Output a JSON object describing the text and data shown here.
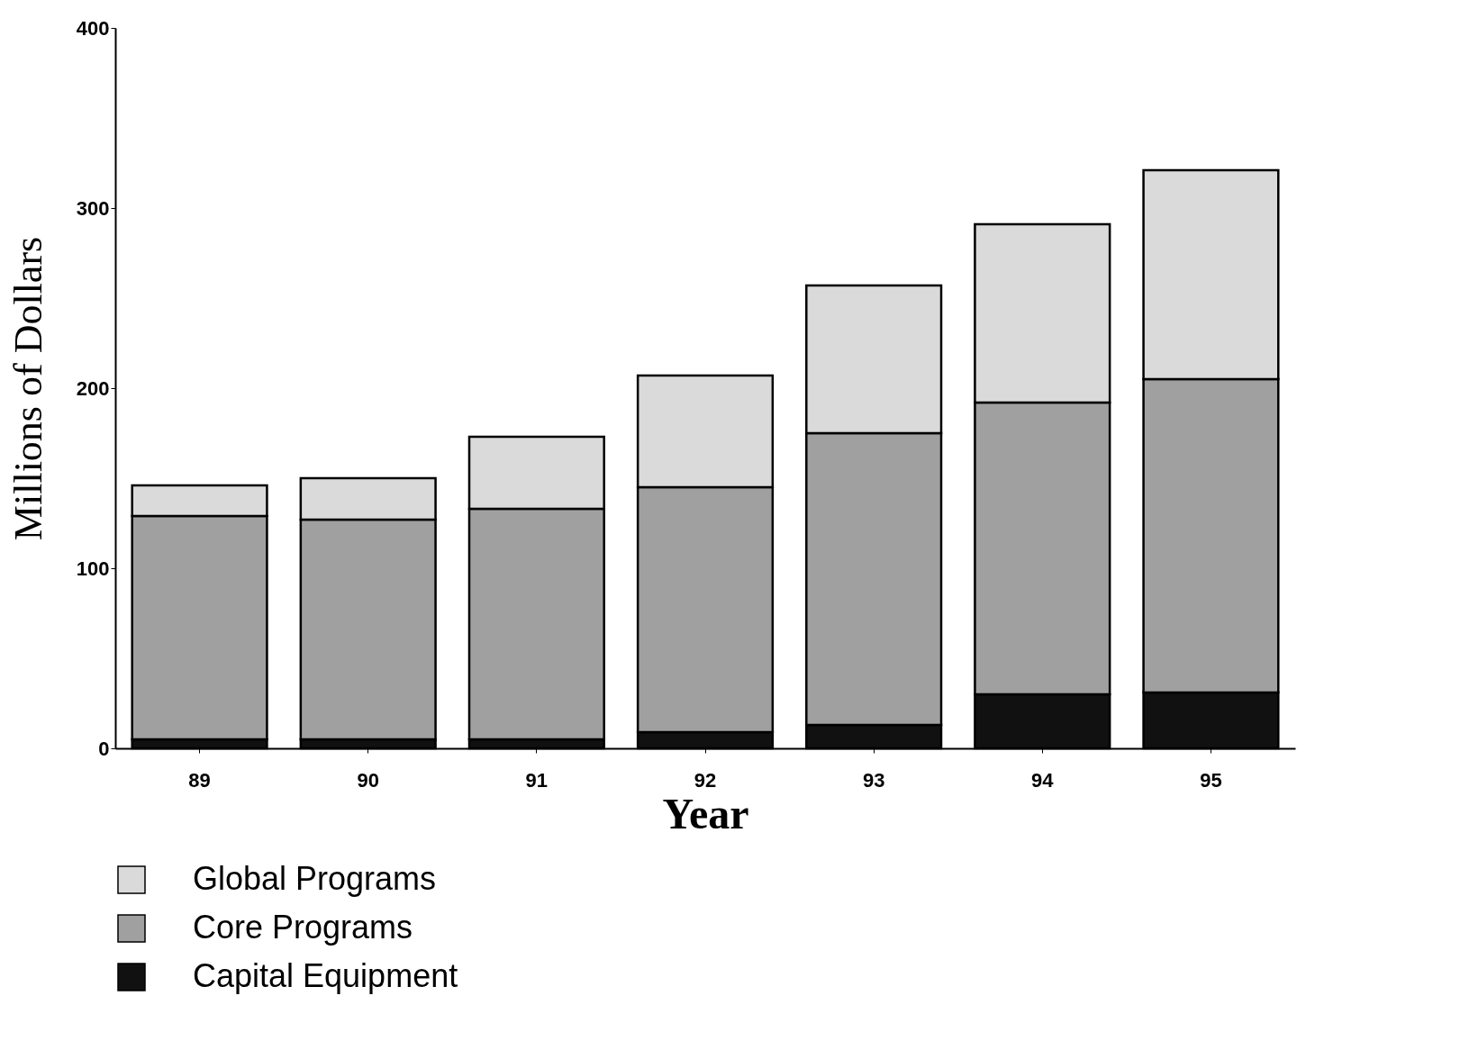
{
  "chart_data": {
    "type": "bar",
    "xlabel": "Year",
    "ylabel": "Millions of Dollars",
    "categories": [
      "89",
      "90",
      "91",
      "92",
      "93",
      "94",
      "95"
    ],
    "stacked": true,
    "ylim": [
      0,
      400
    ],
    "yticks": [
      0,
      100,
      200,
      300,
      400
    ],
    "legend": "bottom",
    "series": [
      {
        "name": "Capital Equipment",
        "color": "#111111",
        "values": [
          5,
          5,
          5,
          9,
          13,
          30,
          31
        ]
      },
      {
        "name": "Core Programs",
        "color": "#a0a0a0",
        "values": [
          124,
          122,
          128,
          136,
          162,
          162,
          174
        ]
      },
      {
        "name": "Global Programs",
        "color": "#dadada",
        "values": [
          17,
          23,
          40,
          62,
          82,
          99,
          116
        ]
      }
    ]
  }
}
